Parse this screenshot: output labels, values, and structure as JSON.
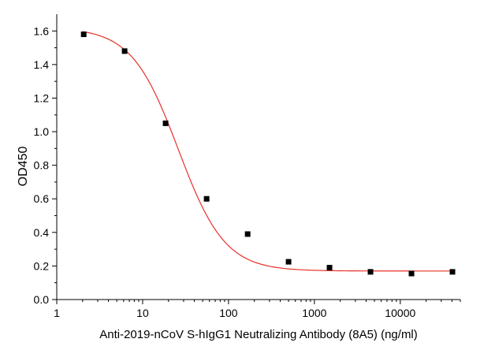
{
  "chart_data": {
    "type": "scatter",
    "title": "",
    "xlabel": "Anti-2019-nCoV S-hIgG1 Neutralizing Antibody (8A5) (ng/ml)",
    "ylabel": "OD450",
    "x_scale": "log",
    "xlim": [
      1,
      50000
    ],
    "ylim": [
      0.0,
      1.7
    ],
    "x_ticks": [
      1,
      10,
      100,
      1000,
      10000
    ],
    "x_tick_labels": [
      "1",
      "10",
      "100",
      "1000",
      "10000"
    ],
    "y_ticks": [
      0.0,
      0.2,
      0.4,
      0.6,
      0.8,
      1.0,
      1.2,
      1.4,
      1.6
    ],
    "y_tick_labels": [
      "0.0",
      "0.2",
      "0.4",
      "0.6",
      "0.8",
      "1.0",
      "1.2",
      "1.4",
      "1.6"
    ],
    "grid": false,
    "legend": "none",
    "series": [
      {
        "type": "scatter",
        "marker": "square",
        "color": "#000000",
        "x": [
          2.06,
          6.17,
          18.5,
          55.6,
          167,
          500,
          1500,
          4500,
          13500,
          40500
        ],
        "y": [
          1.58,
          1.48,
          1.05,
          0.6,
          0.39,
          0.225,
          0.19,
          0.165,
          0.155,
          0.165
        ]
      },
      {
        "type": "line",
        "color": "#e8302a",
        "fit": "4PL",
        "params": {
          "top": 1.62,
          "bottom": 0.17,
          "ec50": 26,
          "hill": 1.6
        },
        "x_range": [
          2.0,
          40500
        ]
      }
    ]
  }
}
